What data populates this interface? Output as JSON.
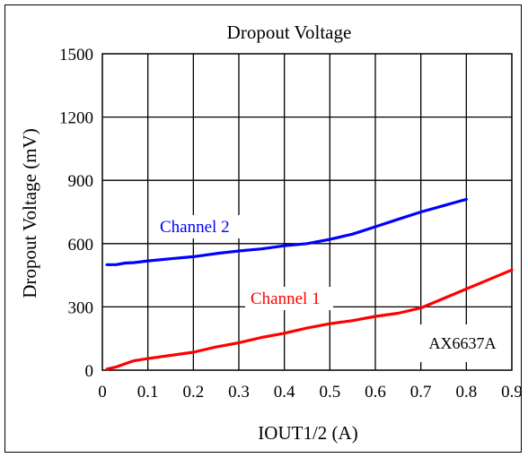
{
  "chart_data": {
    "type": "line",
    "title": "Dropout Voltage",
    "xlabel": "IOUT1/2 (A)",
    "ylabel": "Dropout Voltage (mV)",
    "xlim": [
      0,
      0.9
    ],
    "ylim": [
      0,
      1500
    ],
    "xticks": [
      0,
      0.1,
      0.2,
      0.3,
      0.4,
      0.5,
      0.6,
      0.7,
      0.8,
      0.9
    ],
    "xtick_labels": [
      "0",
      "0.1",
      "0.2",
      "0.3",
      "0.4",
      "0.5",
      "0.6",
      "0.7",
      "0.8",
      "0.9"
    ],
    "yticks": [
      0,
      300,
      600,
      900,
      1200,
      1500
    ],
    "ytick_labels": [
      "0",
      "300",
      "600",
      "900",
      "1200",
      "1500"
    ],
    "grid": true,
    "annotation": "AX6637A",
    "series": [
      {
        "name": "Channel 1",
        "color": "#ff0000",
        "x": [
          0.01,
          0.03,
          0.05,
          0.07,
          0.1,
          0.15,
          0.2,
          0.25,
          0.3,
          0.35,
          0.4,
          0.45,
          0.5,
          0.55,
          0.6,
          0.65,
          0.7,
          0.75,
          0.8,
          0.85,
          0.9
        ],
        "y": [
          5,
          15,
          30,
          45,
          55,
          70,
          85,
          110,
          130,
          155,
          175,
          200,
          220,
          235,
          255,
          270,
          295,
          340,
          385,
          430,
          475
        ]
      },
      {
        "name": "Channel 2",
        "color": "#0000ff",
        "x": [
          0.01,
          0.03,
          0.05,
          0.07,
          0.1,
          0.15,
          0.2,
          0.25,
          0.3,
          0.35,
          0.4,
          0.45,
          0.5,
          0.55,
          0.6,
          0.65,
          0.7,
          0.75,
          0.8
        ],
        "y": [
          500,
          500,
          508,
          510,
          518,
          528,
          538,
          553,
          565,
          575,
          590,
          600,
          620,
          645,
          680,
          715,
          750,
          780,
          810
        ]
      }
    ]
  }
}
